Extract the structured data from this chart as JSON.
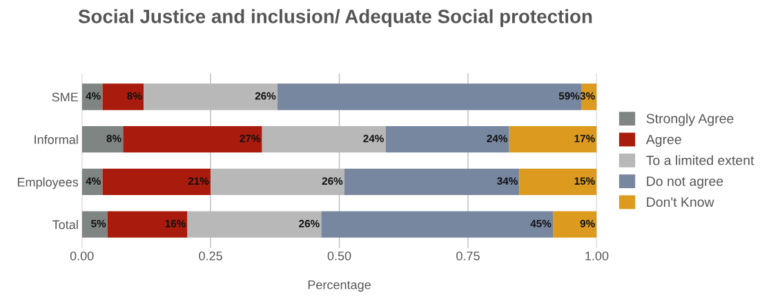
{
  "chart_data": {
    "type": "bar",
    "orientation": "horizontal",
    "stacked": true,
    "title": "Social Justice and inclusion/ Adequate Social protection",
    "xlabel": "Percentage",
    "categories": [
      "SME",
      "Informal",
      "Employees",
      "Total"
    ],
    "series": [
      {
        "name": "Strongly Agree",
        "color": "#7f8583",
        "values": [
          0.04,
          0.08,
          0.04,
          0.05
        ],
        "value_labels": [
          "4%",
          "8%",
          "4%",
          "5%"
        ]
      },
      {
        "name": "Agree",
        "color": "#a91b0d",
        "values": [
          0.08,
          0.27,
          0.21,
          0.155
        ],
        "value_labels": [
          "8%",
          "27%",
          "21%",
          "16%"
        ]
      },
      {
        "name": "To a limited extent",
        "color": "#b8b8b8",
        "values": [
          0.26,
          0.24,
          0.26,
          0.26
        ],
        "value_labels": [
          "26%",
          "24%",
          "26%",
          "26%"
        ]
      },
      {
        "name": "Do not agree",
        "color": "#7887a0",
        "values": [
          0.59,
          0.24,
          0.34,
          0.45
        ],
        "value_labels": [
          "59%",
          "24%",
          "34%",
          "45%"
        ]
      },
      {
        "name": "Don't Know",
        "color": "#dc9a1e",
        "values": [
          0.03,
          0.17,
          0.15,
          0.085
        ],
        "value_labels": [
          "3%",
          "17%",
          "15%",
          "9%"
        ]
      }
    ],
    "xlim": [
      0,
      1
    ],
    "xticks": [
      {
        "value": 0,
        "label": "0.00"
      },
      {
        "value": 0.25,
        "label": "0.25"
      },
      {
        "value": 0.5,
        "label": "0.50"
      },
      {
        "value": 0.75,
        "label": "0.75"
      },
      {
        "value": 1,
        "label": "1.00"
      }
    ],
    "grid": "x",
    "legend": "right"
  }
}
